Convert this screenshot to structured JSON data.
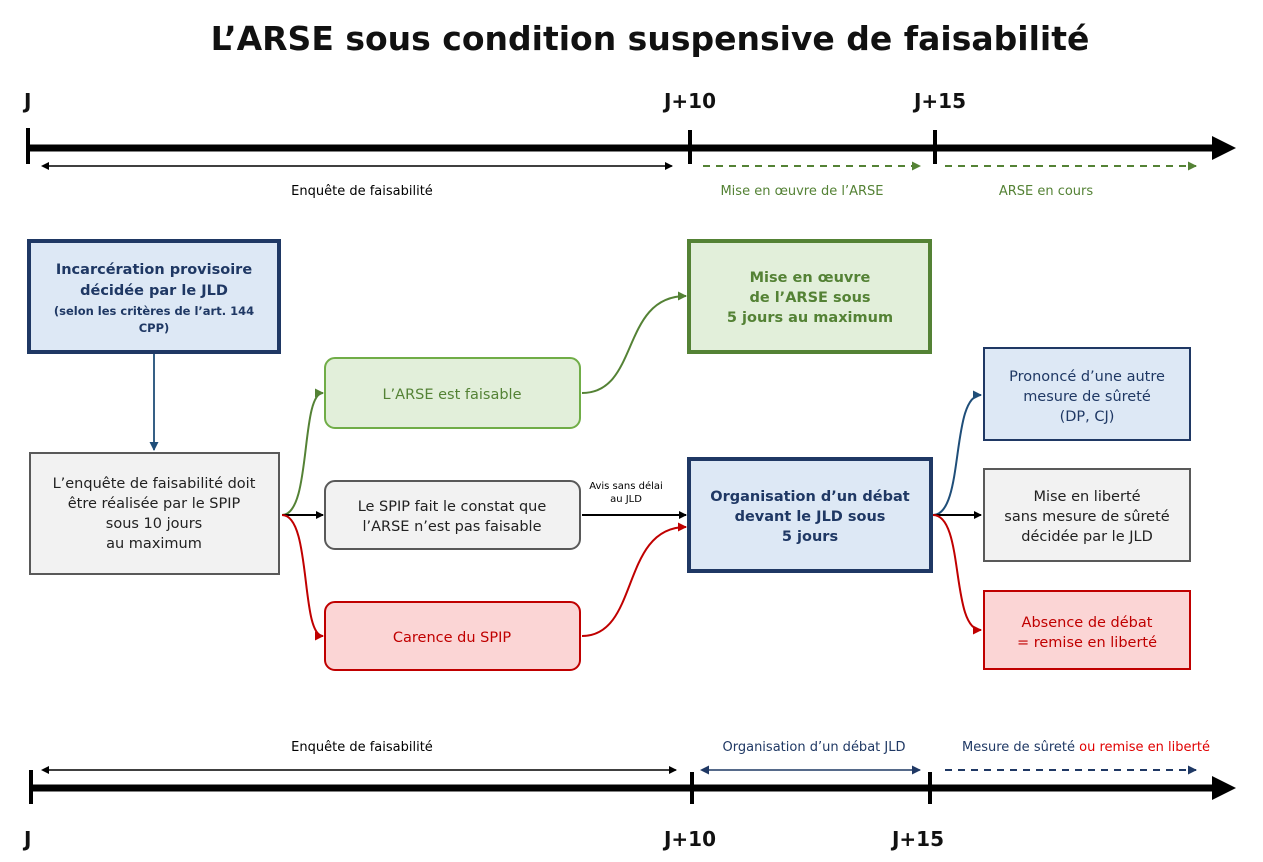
{
  "title": "L’ARSE sous condition suspensive de faisabilité",
  "colors": {
    "navy": "#1f3864",
    "green": "#548235",
    "red": "#c00000",
    "gray": "#595959",
    "fill_blue": "#dde8f5",
    "fill_green": "#e2efda",
    "fill_red": "#fbd5d5",
    "fill_gray": "#f2f2f2"
  },
  "top_timeline": {
    "ticks": [
      "J",
      "J+10",
      "J+15"
    ],
    "segments": [
      "Enquête de faisabilité",
      "Mise en œuvre de l’ARSE",
      "ARSE en cours"
    ]
  },
  "bottom_timeline": {
    "ticks": [
      "J",
      "J+10",
      "J+15"
    ],
    "segments": [
      "Enquête de faisabilité",
      "Organisation d’un débat JLD",
      "Mesure de sûreté",
      "ou remise en liberté"
    ]
  },
  "boxes": {
    "incarceration": [
      "Incarcération provisoire",
      "décidée par le JLD",
      "(selon les critères de l’art. 144",
      "CPP)"
    ],
    "enquete": [
      "L’enquête de faisabilité doit",
      "être réalisée par le SPIP",
      "sous 10 jours",
      "au maximum"
    ],
    "faisable": [
      "L’ARSE est faisable"
    ],
    "constat": [
      "Le SPIP fait le constat que",
      "l’ARSE n’est pas faisable"
    ],
    "carence": [
      "Carence du SPIP"
    ],
    "mise_en_oeuvre": [
      "Mise en œuvre",
      "de l’ARSE sous",
      "5 jours au maximum"
    ],
    "debat": [
      "Organisation d’un débat",
      "devant le JLD sous",
      "5 jours"
    ],
    "autre_mesure": [
      "Prononcé d’une autre",
      "mesure de sûreté",
      "(DP, CJ)"
    ],
    "liberte": [
      "Mise en liberté",
      "sans mesure de sûreté",
      "décidée par le JLD"
    ],
    "absence": [
      "Absence de débat",
      "= remise en liberté"
    ]
  },
  "edge_label": [
    "Avis sans délai",
    "au JLD"
  ]
}
